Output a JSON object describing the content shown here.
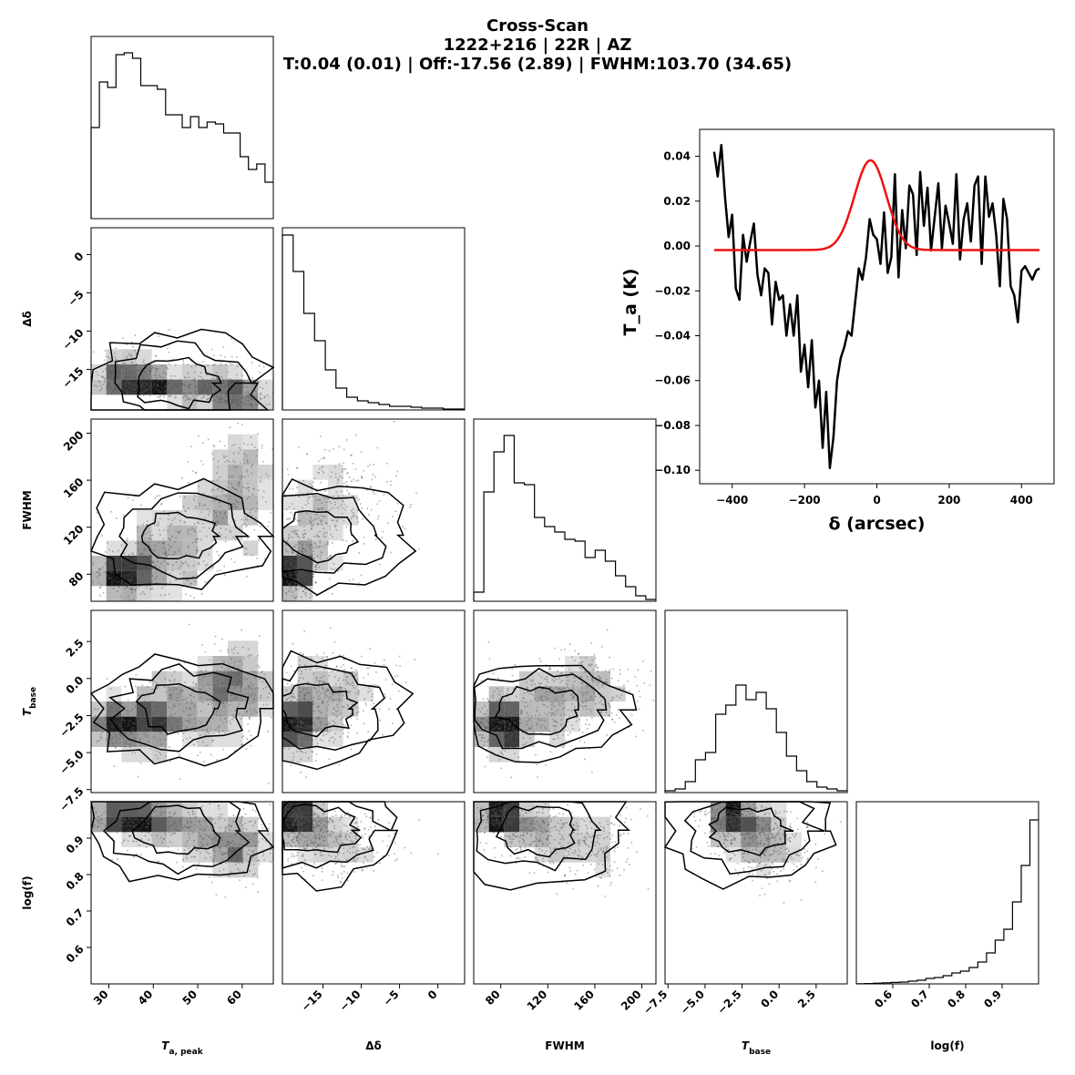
{
  "title": {
    "line1": "Cross-Scan",
    "line2": "1222+216 | 22R | AZ",
    "line3": "T:0.04 (0.01) | Off:-17.56 (2.89) | FWHM:103.70 (34.65)"
  },
  "colors": {
    "data": "#000000",
    "fit": "#ee1111",
    "axes": "#000000"
  },
  "chart_data": [
    {
      "type": "line",
      "panel": "scan-inset",
      "xlabel": "δ (arcsec)",
      "ylabel": "T_a (K)",
      "xlim": [
        -490,
        490
      ],
      "ylim": [
        -0.106,
        0.052
      ],
      "xticks": [
        -400,
        -200,
        0,
        200,
        400
      ],
      "xtick_labels": [
        "−400",
        "−200",
        "0",
        "200",
        "400"
      ],
      "yticks": [
        0.04,
        0.02,
        0.0,
        -0.02,
        -0.04,
        -0.06,
        -0.08,
        -0.1
      ],
      "ytick_labels": [
        "0.04",
        "0.02",
        "0.00",
        "−0.02",
        "−0.04",
        "−0.06",
        "−0.08",
        "−0.10"
      ],
      "series": [
        {
          "role": "data",
          "x": [
            -450,
            -440,
            -430,
            -420,
            -410,
            -400,
            -390,
            -380,
            -370,
            -360,
            -350,
            -340,
            -330,
            -320,
            -310,
            -300,
            -290,
            -280,
            -270,
            -260,
            -250,
            -240,
            -230,
            -220,
            -210,
            -200,
            -190,
            -180,
            -170,
            -160,
            -150,
            -140,
            -130,
            -120,
            -110,
            -100,
            -90,
            -80,
            -70,
            -60,
            -50,
            -40,
            -30,
            -20,
            -10,
            0,
            10,
            20,
            30,
            40,
            50,
            60,
            70,
            80,
            90,
            100,
            110,
            120,
            130,
            140,
            150,
            160,
            170,
            180,
            190,
            200,
            210,
            220,
            230,
            240,
            250,
            260,
            270,
            280,
            290,
            300,
            310,
            320,
            330,
            340,
            350,
            360,
            370,
            380,
            390,
            400,
            410,
            420,
            430,
            440,
            450
          ],
          "y": [
            0.042,
            0.031,
            0.045,
            0.022,
            0.004,
            0.014,
            -0.019,
            -0.024,
            0.005,
            -0.007,
            0.002,
            0.01,
            -0.013,
            -0.022,
            -0.01,
            -0.012,
            -0.035,
            -0.016,
            -0.024,
            -0.022,
            -0.04,
            -0.026,
            -0.04,
            -0.022,
            -0.056,
            -0.044,
            -0.063,
            -0.042,
            -0.072,
            -0.06,
            -0.09,
            -0.065,
            -0.099,
            -0.085,
            -0.06,
            -0.05,
            -0.045,
            -0.038,
            -0.04,
            -0.025,
            -0.01,
            -0.015,
            -0.005,
            0.012,
            0.005,
            0.003,
            -0.008,
            0.015,
            -0.012,
            -0.005,
            0.032,
            -0.014,
            0.016,
            -0.001,
            0.027,
            0.023,
            -0.004,
            0.033,
            0.009,
            0.026,
            -0.002,
            0.013,
            0.028,
            -0.001,
            0.018,
            0.01,
            0.001,
            0.032,
            -0.006,
            0.012,
            0.019,
            0.002,
            0.027,
            0.031,
            -0.008,
            0.031,
            0.013,
            0.019,
            0.005,
            -0.018,
            0.021,
            0.012,
            -0.018,
            -0.022,
            -0.034,
            -0.011,
            -0.009,
            -0.012,
            -0.015,
            -0.011,
            -0.01
          ]
        },
        {
          "role": "fit",
          "amplitude": 0.04,
          "center": -17.56,
          "fwhm": 103.7,
          "baseline": -0.0018
        }
      ]
    },
    {
      "type": "histogram",
      "panel": "corner-diag-Ta_peak",
      "xlim": [
        26,
        67
      ],
      "values": [
        0.5,
        0.75,
        0.72,
        0.9,
        0.91,
        0.88,
        0.73,
        0.73,
        0.71,
        0.57,
        0.57,
        0.5,
        0.56,
        0.5,
        0.53,
        0.52,
        0.47,
        0.47,
        0.34,
        0.27,
        0.3,
        0.2
      ]
    },
    {
      "type": "histogram",
      "panel": "corner-diag-Delta_delta",
      "xlim": [
        -20.3,
        3.5
      ],
      "values": [
        0.96,
        0.76,
        0.53,
        0.38,
        0.22,
        0.12,
        0.07,
        0.05,
        0.04,
        0.03,
        0.02,
        0.02,
        0.015,
        0.01,
        0.01,
        0.005,
        0.005
      ]
    },
    {
      "type": "histogram",
      "panel": "corner-diag-FWHM",
      "xlim": [
        57,
        212
      ],
      "values": [
        0.05,
        0.6,
        0.82,
        0.91,
        0.65,
        0.64,
        0.46,
        0.41,
        0.38,
        0.34,
        0.33,
        0.24,
        0.28,
        0.22,
        0.14,
        0.08,
        0.03,
        0.01
      ]
    },
    {
      "type": "histogram",
      "panel": "corner-diag-T_base",
      "xlim": [
        -7.7,
        4.6
      ],
      "values": [
        0.01,
        0.02,
        0.06,
        0.18,
        0.22,
        0.43,
        0.48,
        0.59,
        0.51,
        0.55,
        0.46,
        0.33,
        0.2,
        0.12,
        0.06,
        0.03,
        0.02,
        0.01
      ]
    },
    {
      "type": "histogram",
      "panel": "corner-diag-log_f",
      "xlim": [
        0.5,
        1.0
      ],
      "values": [
        0.001,
        0.002,
        0.004,
        0.006,
        0.008,
        0.01,
        0.015,
        0.02,
        0.03,
        0.035,
        0.045,
        0.06,
        0.07,
        0.09,
        0.12,
        0.17,
        0.24,
        0.3,
        0.45,
        0.65,
        0.9
      ]
    }
  ],
  "corner": {
    "params": [
      {
        "key": "Ta_peak",
        "label": "T",
        "sub": "a, peak",
        "ticks": [
          30,
          40,
          50,
          60
        ],
        "tick_labels": [
          "30",
          "40",
          "50",
          "60"
        ],
        "range": [
          26,
          67
        ]
      },
      {
        "key": "Delta_delta",
        "label": "Δδ",
        "sub": "",
        "ticks": [
          -15,
          -10,
          -5,
          0
        ],
        "tick_labels": [
          "−15",
          "−10",
          "−5",
          "0"
        ],
        "range": [
          -20.3,
          3.5
        ]
      },
      {
        "key": "FWHM",
        "label": "FWHM",
        "sub": "",
        "ticks": [
          80,
          120,
          160,
          200
        ],
        "tick_labels": [
          "80",
          "120",
          "160",
          "200"
        ],
        "range": [
          57,
          212
        ]
      },
      {
        "key": "T_base",
        "label": "T",
        "sub": "base",
        "ticks": [
          -7.5,
          -5.0,
          -2.5,
          0.0,
          2.5
        ],
        "tick_labels": [
          "−7.5",
          "−5.0",
          "−2.5",
          "0.0",
          "2.5"
        ],
        "range": [
          -7.7,
          4.6
        ]
      },
      {
        "key": "log_f",
        "label": "log(f)",
        "sub": "",
        "ticks": [
          0.6,
          0.7,
          0.8,
          0.9
        ],
        "tick_labels": [
          "0.6",
          "0.7",
          "0.8",
          "0.9"
        ],
        "range": [
          0.5,
          1.0
        ]
      }
    ]
  }
}
